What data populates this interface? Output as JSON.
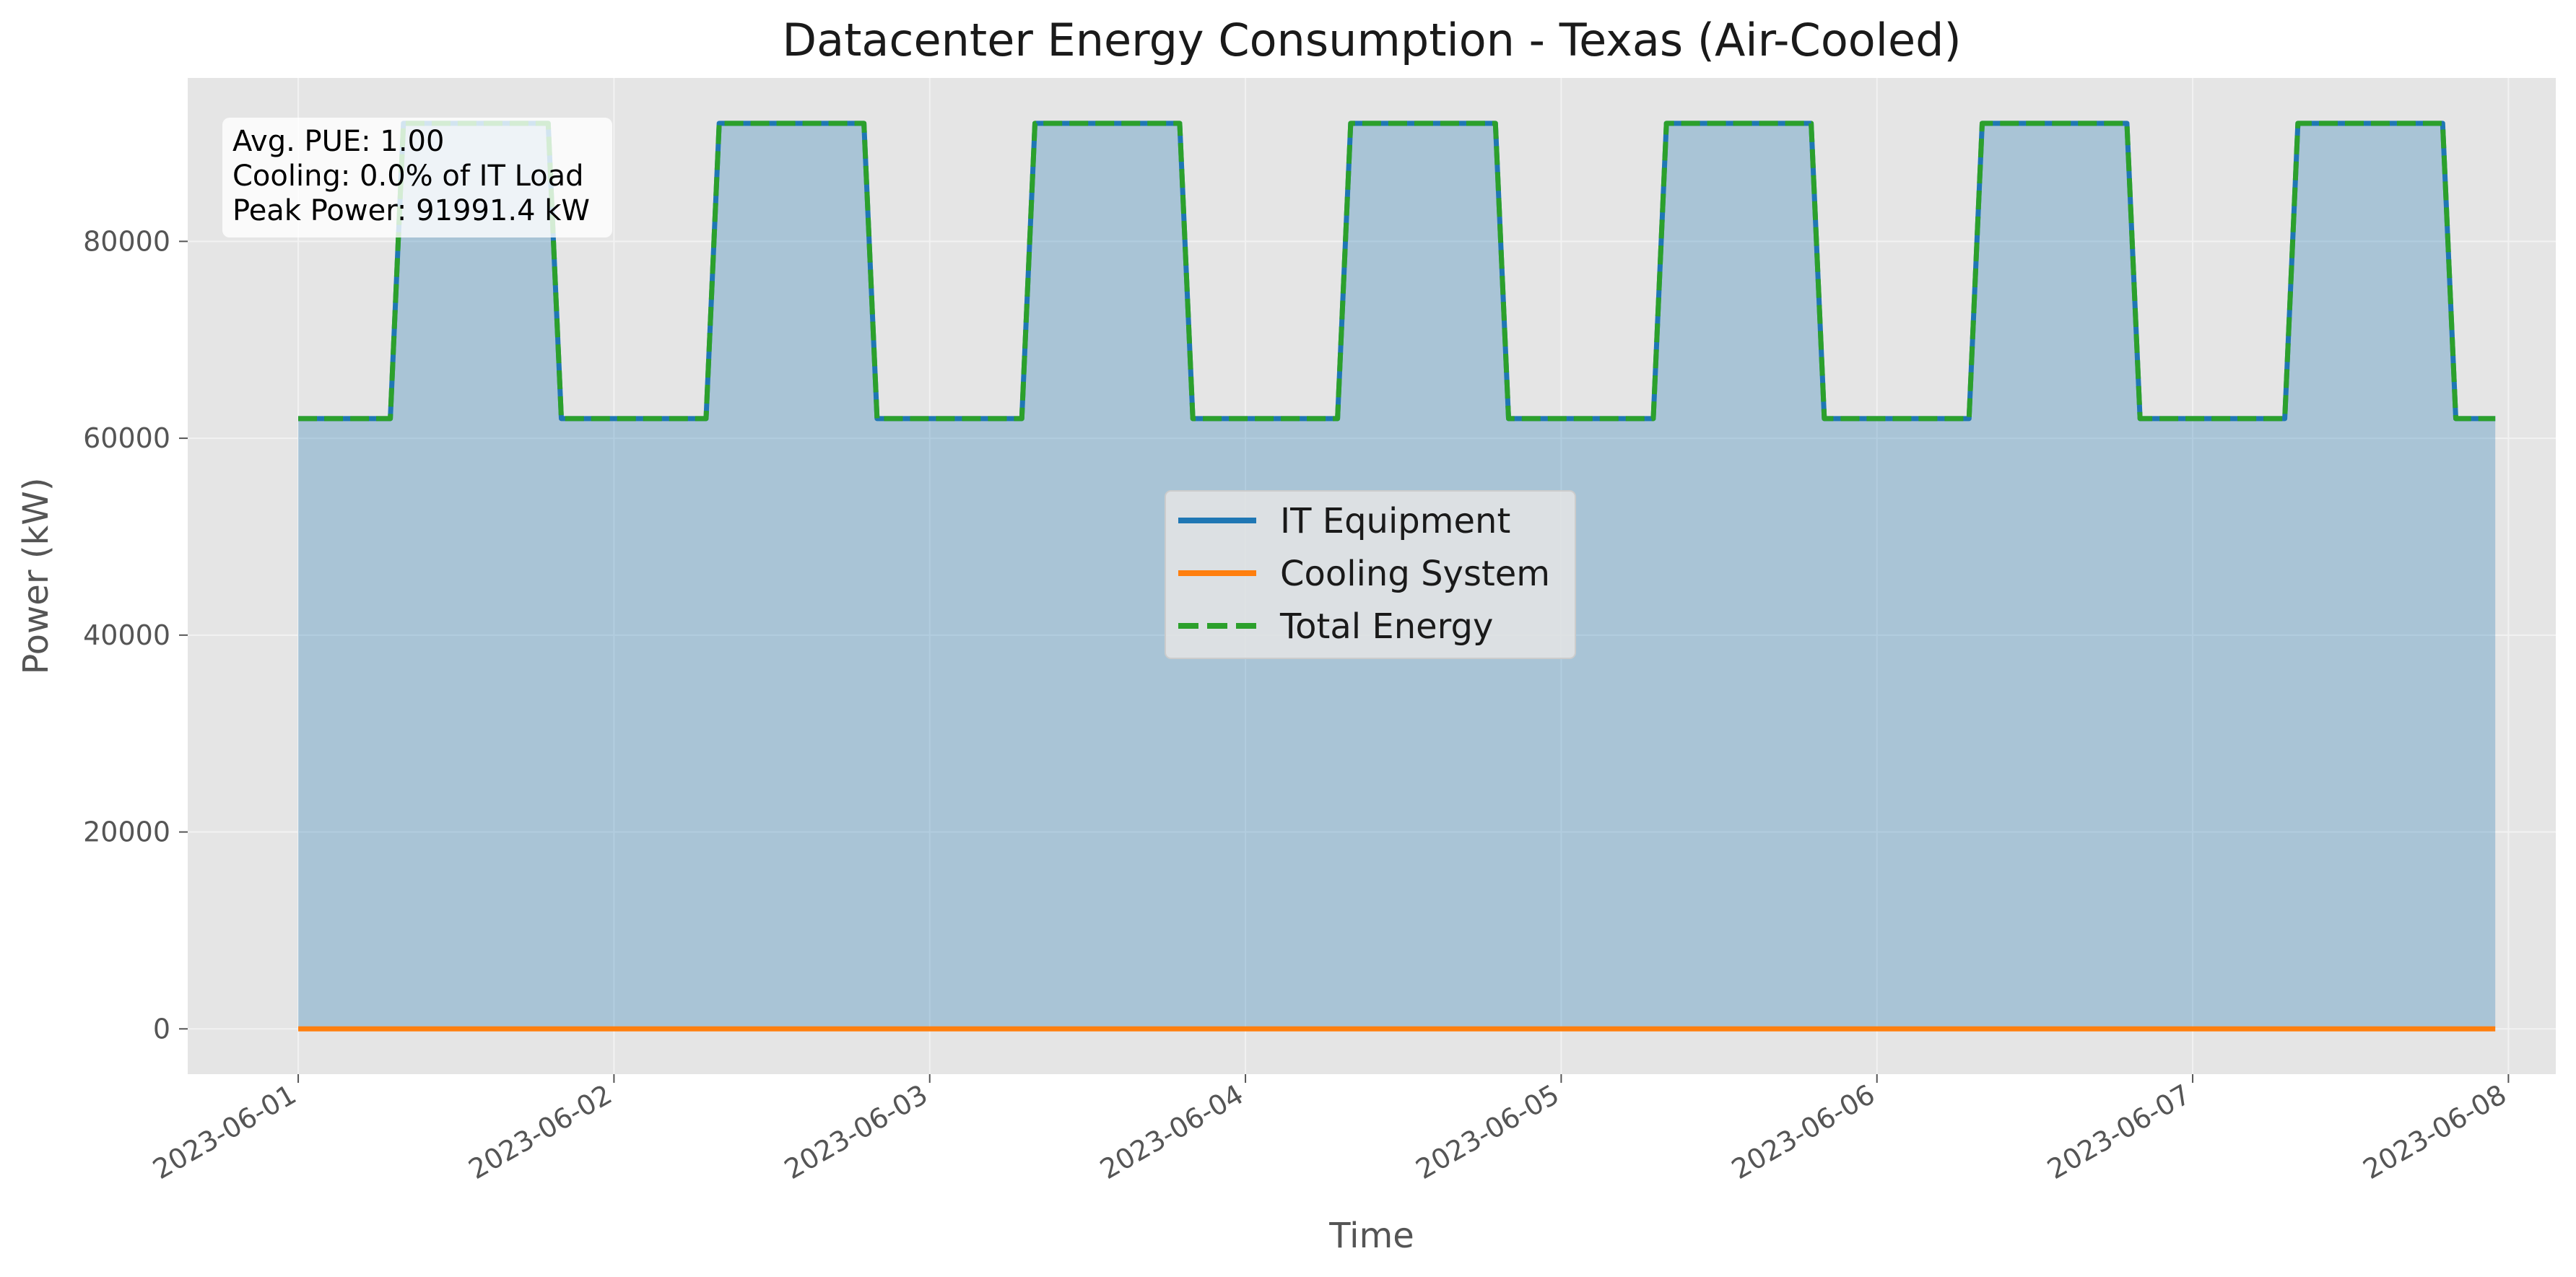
{
  "chart_data": {
    "type": "area",
    "title": "Datacenter Energy Consumption - Texas (Air-Cooled)",
    "xlabel": "Time",
    "ylabel": "Power (kW)",
    "xlim": [
      -0.35,
      7.15
    ],
    "ylim": [
      -4600,
      96600
    ],
    "x_ticks": [
      {
        "x": 0,
        "label": "2023-06-01"
      },
      {
        "x": 1,
        "label": "2023-06-02"
      },
      {
        "x": 2,
        "label": "2023-06-03"
      },
      {
        "x": 3,
        "label": "2023-06-04"
      },
      {
        "x": 4,
        "label": "2023-06-05"
      },
      {
        "x": 5,
        "label": "2023-06-06"
      },
      {
        "x": 6,
        "label": "2023-06-07"
      },
      {
        "x": 7,
        "label": "2023-06-08"
      }
    ],
    "y_ticks": [
      0,
      20000,
      40000,
      60000,
      80000
    ],
    "grid": true,
    "legend_location": "center",
    "schedule": {
      "start_date": "2023-06-01",
      "days": 7,
      "sample_hours": 1,
      "last_sample_hour": 167,
      "ramp_up_hours": [
        7,
        8
      ],
      "ramp_down_hours": [
        19,
        20
      ],
      "baseline_kw": 62000,
      "peak_kw": 91991.4
    },
    "series": [
      {
        "name": "IT Equipment",
        "color": "#1f77b4",
        "style": "solid",
        "values": "schedule"
      },
      {
        "name": "Cooling System",
        "color": "#ff7f0e",
        "style": "solid",
        "values": "zero"
      },
      {
        "name": "Total Energy",
        "color": "#2ca02c",
        "style": "dashed",
        "values": "schedule"
      }
    ],
    "fill": {
      "series": "IT Equipment",
      "color": "#1f77b4",
      "opacity": 0.3
    },
    "annotation": {
      "lines": [
        "Avg. PUE: 1.00",
        "Cooling: 0.0% of IT Load",
        "Peak Power: 91991.4 kW"
      ]
    }
  },
  "colors": {
    "plot_background": "#e5e5e5",
    "grid": "#f2f2f2"
  }
}
